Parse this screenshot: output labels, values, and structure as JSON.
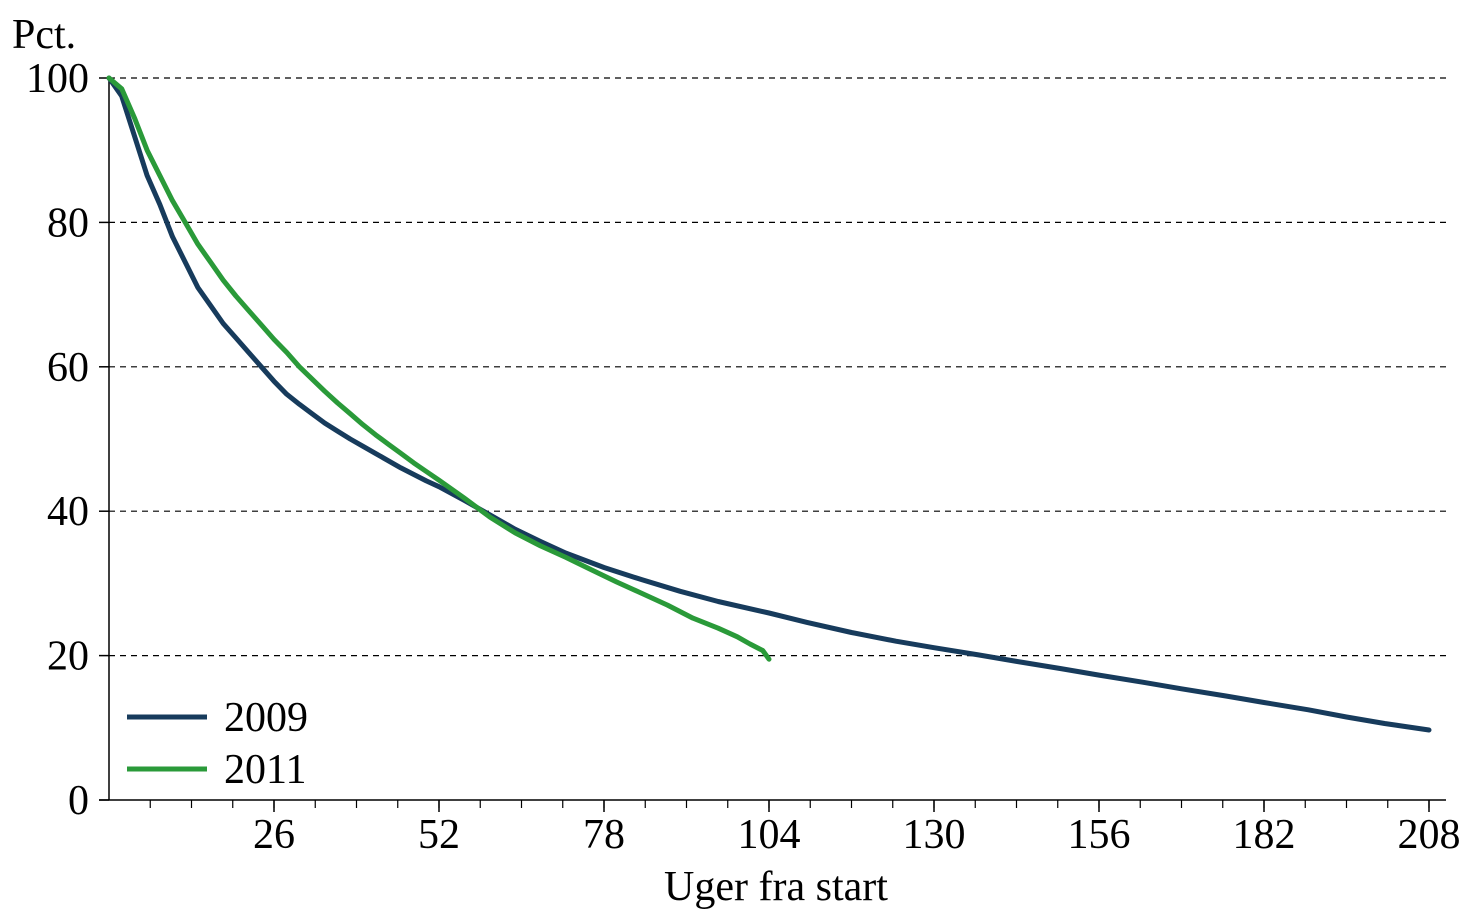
{
  "chart_data": {
    "type": "line",
    "ylabel": "Pct.",
    "xlabel": "Uger fra start",
    "xlim": [
      0,
      208
    ],
    "ylim": [
      0,
      100
    ],
    "x_ticks": [
      26,
      52,
      78,
      104,
      130,
      156,
      182,
      208
    ],
    "y_ticks": [
      0,
      20,
      40,
      60,
      80,
      100
    ],
    "grid": "horizontal dashed",
    "legend_position": "bottom-left",
    "series": [
      {
        "name": "2009",
        "color": "#173b5c",
        "x": [
          0,
          2,
          4,
          6,
          8,
          10,
          12,
          14,
          16,
          18,
          20,
          22,
          24,
          26,
          28,
          30,
          32,
          34,
          36,
          38,
          40,
          42,
          44,
          46,
          48,
          50,
          52,
          56,
          60,
          64,
          68,
          72,
          78,
          84,
          90,
          96,
          104,
          110,
          117,
          124,
          130,
          137,
          143,
          150,
          156,
          163,
          169,
          176,
          182,
          189,
          195,
          201,
          208
        ],
        "y": [
          100,
          97.5,
          92,
          86.5,
          82.5,
          78,
          74.5,
          71,
          68.5,
          66,
          64,
          62,
          60,
          58,
          56.2,
          54.8,
          53.5,
          52.2,
          51.1,
          50,
          49,
          48,
          47,
          46,
          45.1,
          44.2,
          43.4,
          41.5,
          39.5,
          37.5,
          35.8,
          34.2,
          32.2,
          30.5,
          28.9,
          27.5,
          25.9,
          24.6,
          23.2,
          22,
          21.1,
          20.1,
          19.2,
          18.2,
          17.3,
          16.3,
          15.4,
          14.4,
          13.5,
          12.5,
          11.5,
          10.6,
          9.7
        ]
      },
      {
        "name": "2011",
        "color": "#2a9a39",
        "x": [
          0,
          2,
          4,
          6,
          8,
          10,
          12,
          14,
          16,
          18,
          20,
          22,
          24,
          26,
          28,
          30,
          32,
          34,
          36,
          38,
          40,
          42,
          44,
          46,
          48,
          50,
          52,
          56,
          60,
          64,
          68,
          72,
          76,
          80,
          84,
          88,
          92,
          96,
          99,
          101,
          103,
          104
        ],
        "y": [
          100,
          98.5,
          94.5,
          90,
          86.5,
          83,
          80,
          77,
          74.5,
          72,
          69.8,
          67.8,
          65.8,
          63.8,
          62,
          60,
          58.3,
          56.6,
          55,
          53.5,
          52,
          50.6,
          49.3,
          48,
          46.7,
          45.5,
          44.3,
          41.8,
          39.2,
          37,
          35.2,
          33.6,
          31.9,
          30.2,
          28.6,
          27,
          25.2,
          23.8,
          22.6,
          21.6,
          20.7,
          19.5
        ]
      }
    ]
  }
}
